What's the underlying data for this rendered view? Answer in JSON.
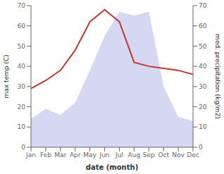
{
  "chart_data": {
    "type": "line",
    "categories": [
      "Jan",
      "Feb",
      "Mar",
      "Apr",
      "May",
      "Jun",
      "Jul",
      "Aug",
      "Sep",
      "Oct",
      "Nov",
      "Dec"
    ],
    "series": [
      {
        "type": "area",
        "color": "#b0b8e8",
        "axis": "y2",
        "values": [
          14,
          19,
          16,
          22,
          38,
          55,
          67,
          65,
          67,
          30,
          15,
          13
        ]
      },
      {
        "type": "line",
        "color": "#c0392b",
        "values": [
          29,
          33,
          38,
          48,
          62,
          68,
          62,
          42,
          40,
          39,
          38,
          36
        ]
      }
    ],
    "xlabel": "date (month)",
    "ylabel": "max temp (C)",
    "y2label": "med. precipitation (kg/m2)",
    "ylim": [
      0,
      70
    ],
    "yticks": [
      0,
      10,
      20,
      30,
      40,
      50,
      60,
      70
    ],
    "y2lim": [
      0,
      70
    ],
    "y2ticks": [
      0,
      10,
      20,
      30,
      40,
      50,
      60,
      70
    ],
    "grid": false
  }
}
